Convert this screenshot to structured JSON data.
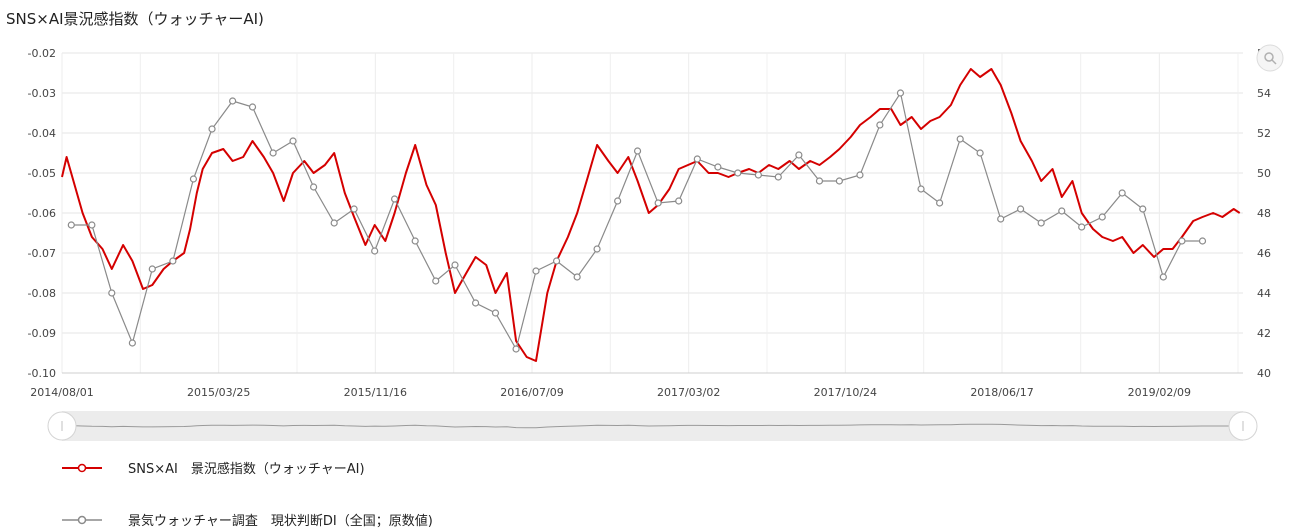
{
  "chart_data": {
    "type": "line",
    "title": "SNS×AI景況感指数（ウォッチャーAI)",
    "x_range": [
      "2014/08/01",
      "2019/06/15"
    ],
    "x_tick_labels": [
      "2014/08/01",
      "2015/03/25",
      "2015/11/16",
      "2016/07/09",
      "2017/03/02",
      "2017/10/24",
      "2018/06/17",
      "2019/02/09"
    ],
    "y_left": {
      "min": -0.1,
      "max": -0.02,
      "step": 0.01,
      "tick_labels": [
        "-0.02",
        "-0.03",
        "-0.04",
        "-0.05",
        "-0.06",
        "-0.07",
        "-0.08",
        "-0.09",
        "-0.10"
      ]
    },
    "y_right": {
      "min": 40,
      "max": 56,
      "step": 2,
      "tick_labels": [
        "56",
        "54",
        "52",
        "50",
        "48",
        "46",
        "44",
        "42",
        "40"
      ]
    },
    "grid": true,
    "legend_position": "bottom",
    "series": [
      {
        "name": "SNS×AI　景況感指数（ウォッチャーAI)",
        "axis": "left",
        "color": "#d40000",
        "points": [
          [
            "2014-08-01",
            -0.051
          ],
          [
            "2014-08-08",
            -0.046
          ],
          [
            "2014-08-20",
            -0.053
          ],
          [
            "2014-09-01",
            -0.06
          ],
          [
            "2014-09-15",
            -0.066
          ],
          [
            "2014-10-01",
            -0.069
          ],
          [
            "2014-10-15",
            -0.074
          ],
          [
            "2014-11-01",
            -0.068
          ],
          [
            "2014-11-15",
            -0.072
          ],
          [
            "2014-12-01",
            -0.079
          ],
          [
            "2014-12-15",
            -0.078
          ],
          [
            "2015-01-01",
            -0.074
          ],
          [
            "2015-01-15",
            -0.072
          ],
          [
            "2015-02-01",
            -0.07
          ],
          [
            "2015-02-10",
            -0.064
          ],
          [
            "2015-02-20",
            -0.055
          ],
          [
            "2015-03-01",
            -0.049
          ],
          [
            "2015-03-15",
            -0.045
          ],
          [
            "2015-04-01",
            -0.044
          ],
          [
            "2015-04-15",
            -0.047
          ],
          [
            "2015-05-01",
            -0.046
          ],
          [
            "2015-05-15",
            -0.042
          ],
          [
            "2015-06-01",
            -0.046
          ],
          [
            "2015-06-15",
            -0.05
          ],
          [
            "2015-07-01",
            -0.057
          ],
          [
            "2015-07-15",
            -0.05
          ],
          [
            "2015-08-01",
            -0.047
          ],
          [
            "2015-08-15",
            -0.05
          ],
          [
            "2015-09-01",
            -0.048
          ],
          [
            "2015-09-15",
            -0.045
          ],
          [
            "2015-10-01",
            -0.055
          ],
          [
            "2015-10-15",
            -0.061
          ],
          [
            "2015-11-01",
            -0.068
          ],
          [
            "2015-11-15",
            -0.063
          ],
          [
            "2015-12-01",
            -0.067
          ],
          [
            "2015-12-15",
            -0.06
          ],
          [
            "2016-01-01",
            -0.05
          ],
          [
            "2016-01-15",
            -0.043
          ],
          [
            "2016-02-01",
            -0.053
          ],
          [
            "2016-02-15",
            -0.058
          ],
          [
            "2016-03-01",
            -0.07
          ],
          [
            "2016-03-15",
            -0.08
          ],
          [
            "2016-04-01",
            -0.075
          ],
          [
            "2016-04-15",
            -0.071
          ],
          [
            "2016-05-01",
            -0.073
          ],
          [
            "2016-05-15",
            -0.08
          ],
          [
            "2016-06-01",
            -0.075
          ],
          [
            "2016-06-15",
            -0.092
          ],
          [
            "2016-07-01",
            -0.096
          ],
          [
            "2016-07-15",
            -0.097
          ],
          [
            "2016-08-01",
            -0.08
          ],
          [
            "2016-08-15",
            -0.072
          ],
          [
            "2016-09-01",
            -0.066
          ],
          [
            "2016-09-15",
            -0.06
          ],
          [
            "2016-10-01",
            -0.051
          ],
          [
            "2016-10-15",
            -0.043
          ],
          [
            "2016-11-01",
            -0.047
          ],
          [
            "2016-11-15",
            -0.05
          ],
          [
            "2016-12-01",
            -0.046
          ],
          [
            "2016-12-15",
            -0.052
          ],
          [
            "2017-01-01",
            -0.06
          ],
          [
            "2017-01-15",
            -0.058
          ],
          [
            "2017-02-01",
            -0.054
          ],
          [
            "2017-02-15",
            -0.049
          ],
          [
            "2017-03-01",
            -0.048
          ],
          [
            "2017-03-15",
            -0.047
          ],
          [
            "2017-04-01",
            -0.05
          ],
          [
            "2017-04-15",
            -0.05
          ],
          [
            "2017-05-01",
            -0.051
          ],
          [
            "2017-05-15",
            -0.05
          ],
          [
            "2017-06-01",
            -0.049
          ],
          [
            "2017-06-15",
            -0.05
          ],
          [
            "2017-07-01",
            -0.048
          ],
          [
            "2017-07-15",
            -0.049
          ],
          [
            "2017-08-01",
            -0.047
          ],
          [
            "2017-08-15",
            -0.049
          ],
          [
            "2017-09-01",
            -0.047
          ],
          [
            "2017-09-15",
            -0.048
          ],
          [
            "2017-10-01",
            -0.046
          ],
          [
            "2017-10-15",
            -0.044
          ],
          [
            "2017-11-01",
            -0.041
          ],
          [
            "2017-11-15",
            -0.038
          ],
          [
            "2017-12-01",
            -0.036
          ],
          [
            "2017-12-15",
            -0.034
          ],
          [
            "2018-01-01",
            -0.034
          ],
          [
            "2018-01-15",
            -0.038
          ],
          [
            "2018-02-01",
            -0.036
          ],
          [
            "2018-02-15",
            -0.039
          ],
          [
            "2018-03-01",
            -0.037
          ],
          [
            "2018-03-15",
            -0.036
          ],
          [
            "2018-04-01",
            -0.033
          ],
          [
            "2018-04-15",
            -0.028
          ],
          [
            "2018-05-01",
            -0.024
          ],
          [
            "2018-05-15",
            -0.026
          ],
          [
            "2018-06-01",
            -0.024
          ],
          [
            "2018-06-15",
            -0.028
          ],
          [
            "2018-07-01",
            -0.035
          ],
          [
            "2018-07-15",
            -0.042
          ],
          [
            "2018-08-01",
            -0.047
          ],
          [
            "2018-08-15",
            -0.052
          ],
          [
            "2018-09-01",
            -0.049
          ],
          [
            "2018-09-15",
            -0.056
          ],
          [
            "2018-10-01",
            -0.052
          ],
          [
            "2018-10-15",
            -0.06
          ],
          [
            "2018-11-01",
            -0.064
          ],
          [
            "2018-11-15",
            -0.066
          ],
          [
            "2018-12-01",
            -0.067
          ],
          [
            "2018-12-15",
            -0.066
          ],
          [
            "2019-01-01",
            -0.07
          ],
          [
            "2019-01-15",
            -0.068
          ],
          [
            "2019-02-01",
            -0.071
          ],
          [
            "2019-02-15",
            -0.069
          ],
          [
            "2019-03-01",
            -0.069
          ],
          [
            "2019-03-15",
            -0.066
          ],
          [
            "2019-04-01",
            -0.062
          ],
          [
            "2019-04-15",
            -0.061
          ],
          [
            "2019-05-01",
            -0.06
          ],
          [
            "2019-05-15",
            -0.061
          ],
          [
            "2019-06-01",
            -0.059
          ],
          [
            "2019-06-10",
            -0.06
          ]
        ]
      },
      {
        "name": "景気ウォッチャー調査　現状判断DI（全国；原数値)",
        "axis": "right",
        "color": "#8a8a8a",
        "points": [
          [
            "2014-08-15",
            47.4
          ],
          [
            "2014-09-15",
            47.4
          ],
          [
            "2014-10-15",
            44.0
          ],
          [
            "2014-11-15",
            41.5
          ],
          [
            "2014-12-15",
            45.2
          ],
          [
            "2015-01-15",
            45.6
          ],
          [
            "2015-02-15",
            49.7
          ],
          [
            "2015-03-15",
            52.2
          ],
          [
            "2015-04-15",
            53.6
          ],
          [
            "2015-05-15",
            53.3
          ],
          [
            "2015-06-15",
            51.0
          ],
          [
            "2015-07-15",
            51.6
          ],
          [
            "2015-08-15",
            49.3
          ],
          [
            "2015-09-15",
            47.5
          ],
          [
            "2015-10-15",
            48.2
          ],
          [
            "2015-11-15",
            46.1
          ],
          [
            "2015-12-15",
            48.7
          ],
          [
            "2016-01-15",
            46.6
          ],
          [
            "2016-02-15",
            44.6
          ],
          [
            "2016-03-15",
            45.4
          ],
          [
            "2016-04-15",
            43.5
          ],
          [
            "2016-05-15",
            43.0
          ],
          [
            "2016-06-15",
            41.2
          ],
          [
            "2016-07-15",
            45.1
          ],
          [
            "2016-08-15",
            45.6
          ],
          [
            "2016-09-15",
            44.8
          ],
          [
            "2016-10-15",
            46.2
          ],
          [
            "2016-11-15",
            48.6
          ],
          [
            "2016-12-15",
            51.1
          ],
          [
            "2017-01-15",
            48.5
          ],
          [
            "2017-02-15",
            48.6
          ],
          [
            "2017-03-15",
            50.7
          ],
          [
            "2017-04-15",
            50.3
          ],
          [
            "2017-05-15",
            50.0
          ],
          [
            "2017-06-15",
            49.9
          ],
          [
            "2017-07-15",
            49.8
          ],
          [
            "2017-08-15",
            50.9
          ],
          [
            "2017-09-15",
            49.6
          ],
          [
            "2017-10-15",
            49.6
          ],
          [
            "2017-11-15",
            49.9
          ],
          [
            "2017-12-15",
            52.4
          ],
          [
            "2018-01-15",
            54.0
          ],
          [
            "2018-02-15",
            49.2
          ],
          [
            "2018-03-15",
            48.5
          ],
          [
            "2018-04-15",
            51.7
          ],
          [
            "2018-05-15",
            51.0
          ],
          [
            "2018-06-15",
            47.7
          ],
          [
            "2018-07-15",
            48.2
          ],
          [
            "2018-08-15",
            47.5
          ],
          [
            "2018-09-15",
            48.1
          ],
          [
            "2018-10-15",
            47.3
          ],
          [
            "2018-11-15",
            47.8
          ],
          [
            "2018-12-15",
            49.0
          ],
          [
            "2019-01-15",
            48.2
          ],
          [
            "2019-02-15",
            44.8
          ],
          [
            "2019-03-15",
            46.6
          ],
          [
            "2019-04-15",
            46.6
          ]
        ]
      }
    ]
  }
}
